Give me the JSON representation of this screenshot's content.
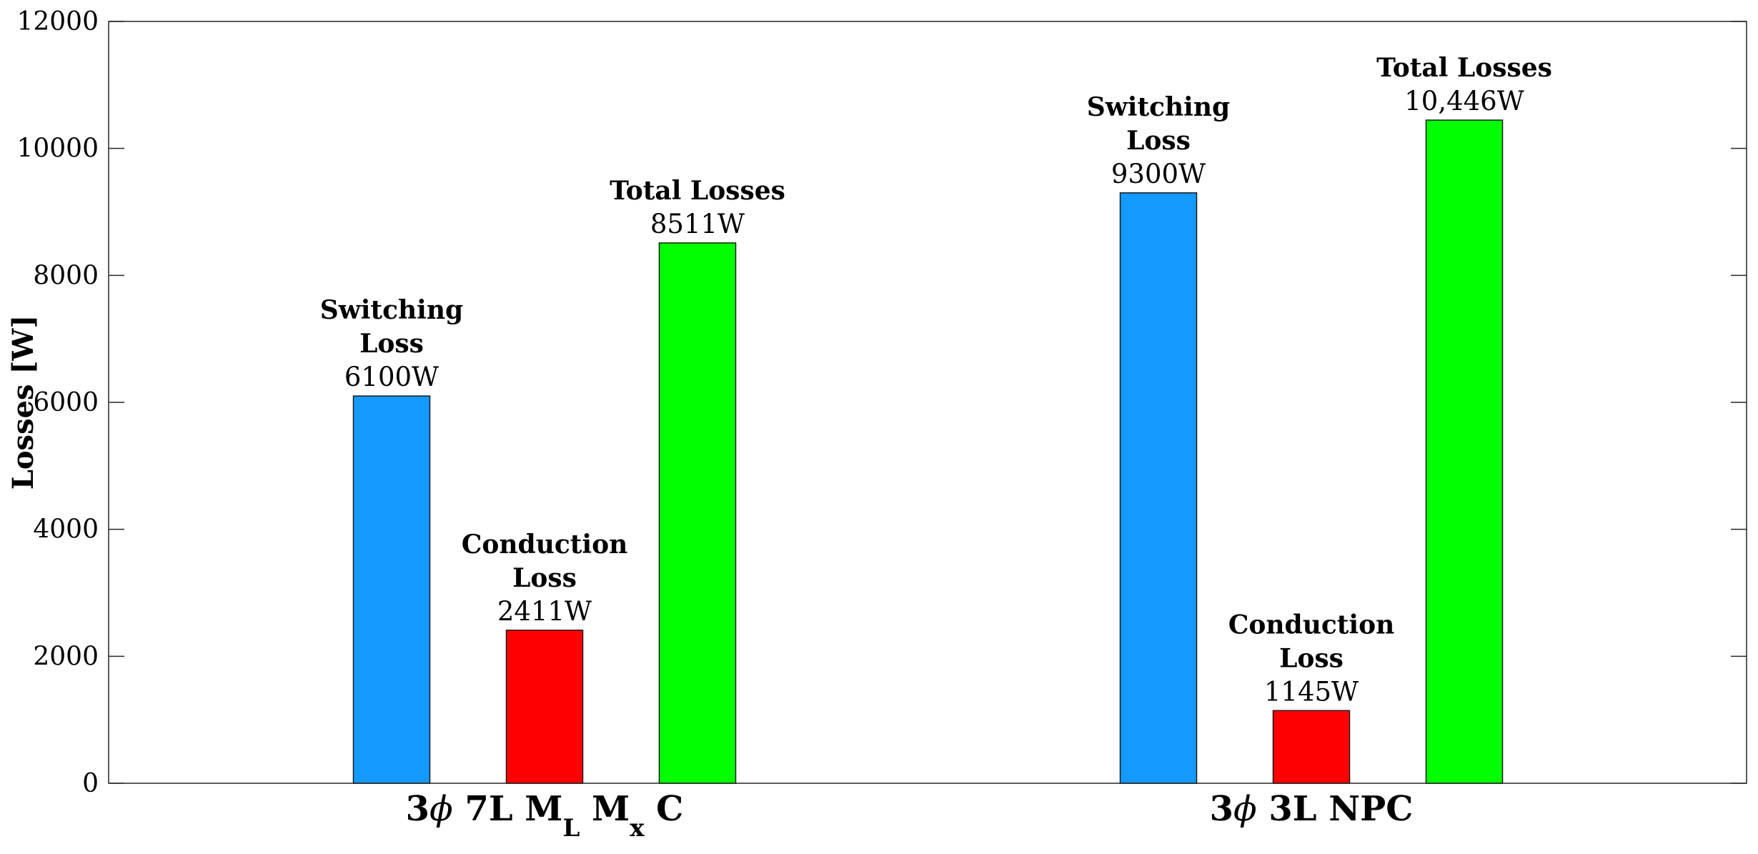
{
  "chart_data": {
    "type": "bar",
    "title": "",
    "xlabel": "",
    "ylabel": "Losses [W]",
    "ylim": [
      0,
      12000
    ],
    "yticks": [
      0,
      2000,
      4000,
      6000,
      8000,
      10000,
      12000
    ],
    "grid": false,
    "categories": [
      {
        "parts": [
          {
            "text": "3",
            "style": "normal"
          },
          {
            "text": "ϕ",
            "style": "italic"
          },
          {
            "text": " 7L M",
            "style": "normal"
          },
          {
            "text": "L",
            "style": "sub"
          },
          {
            "text": " M",
            "style": "normal"
          },
          {
            "text": "x",
            "style": "sub"
          },
          {
            "text": " C",
            "style": "normal"
          }
        ]
      },
      {
        "parts": [
          {
            "text": "3",
            "style": "normal"
          },
          {
            "text": "ϕ",
            "style": "italic"
          },
          {
            "text": " 3L NPC",
            "style": "normal"
          }
        ]
      }
    ],
    "series": [
      {
        "name": "Switching Loss",
        "color": "#1499FF",
        "values": [
          6100,
          9300
        ],
        "labels": [
          [
            "Switching",
            "Loss",
            "6100W"
          ],
          [
            "Switching",
            "Loss",
            "9300W"
          ]
        ]
      },
      {
        "name": "Conduction Loss",
        "color": "#FF0000",
        "values": [
          2411,
          1145
        ],
        "labels": [
          [
            "Conduction",
            "Loss",
            "2411W"
          ],
          [
            "Conduction",
            "Loss",
            "1145W"
          ]
        ]
      },
      {
        "name": "Total Losses",
        "color": "#00FF00",
        "values": [
          8511,
          10446
        ],
        "labels": [
          [
            "Total Losses",
            "8511W"
          ],
          [
            "Total Losses",
            "10,446W"
          ]
        ]
      }
    ]
  }
}
